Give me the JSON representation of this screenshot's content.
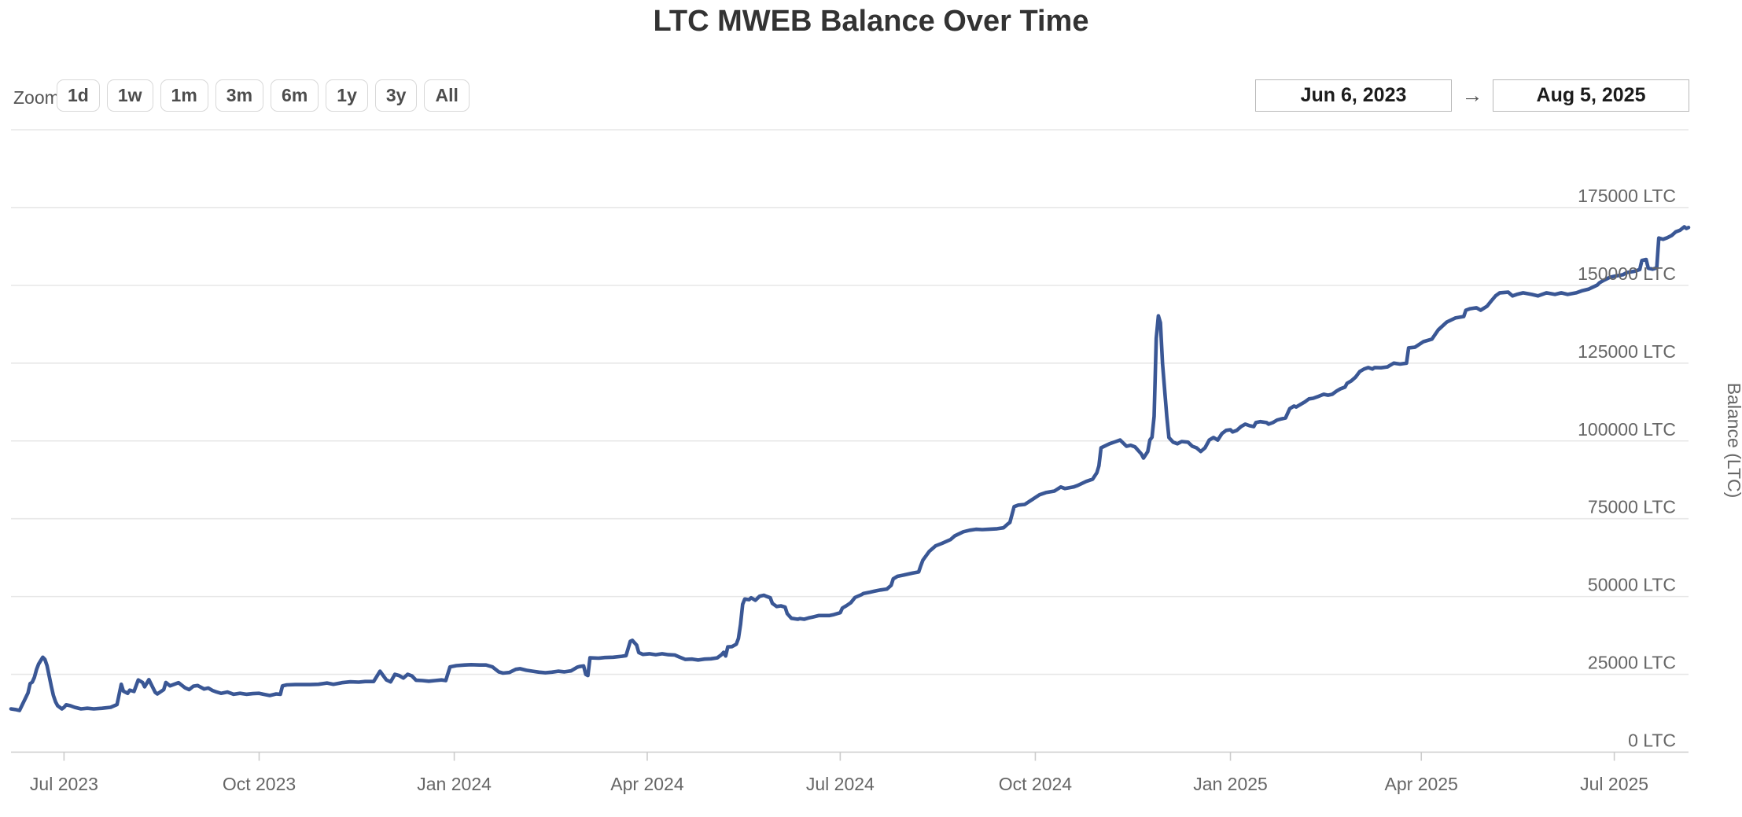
{
  "title": "LTC MWEB Balance Over Time",
  "controls": {
    "zoom_label": "Zoom",
    "zoom_buttons": [
      "1d",
      "1w",
      "1m",
      "3m",
      "6m",
      "1y",
      "3y",
      "All"
    ],
    "range_from": "Jun 6, 2023",
    "range_arrow": "→",
    "range_to": "Aug 5, 2025",
    "range_from_label": "range-start",
    "range_to_label": "range-end"
  },
  "chart_data": {
    "type": "line",
    "title": "LTC MWEB Balance Over Time",
    "ylabel": "Balance (LTC)",
    "line_color": "#3a5795",
    "grid": true,
    "background_color": "#ffffff",
    "gridline_color": "#e7e7e7",
    "axis_line_color": "#cccccc",
    "axis_label_color": "#666666",
    "x_start_date": "2023-06-06",
    "x_end_date": "2025-08-05",
    "total_days": 791,
    "ylim": [
      0,
      200000
    ],
    "y_tick_interval": 25000,
    "y_tick_suffix": " LTC",
    "y_ticks_labeled": [
      0,
      25000,
      50000,
      75000,
      100000,
      125000,
      150000,
      175000
    ],
    "x_ticks": [
      {
        "label": "Jul 2023",
        "day": 25
      },
      {
        "label": "Oct 2023",
        "day": 117
      },
      {
        "label": "Jan 2024",
        "day": 209
      },
      {
        "label": "Apr 2024",
        "day": 300
      },
      {
        "label": "Jul 2024",
        "day": 391
      },
      {
        "label": "Oct 2024",
        "day": 483
      },
      {
        "label": "Jan 2025",
        "day": 575
      },
      {
        "label": "Apr 2025",
        "day": 665
      },
      {
        "label": "Jul 2025",
        "day": 756
      }
    ],
    "points_format": [
      "days_since_2023-06-06",
      "balance_ltc"
    ],
    "points": [
      [
        0,
        13900
      ],
      [
        2,
        13700
      ],
      [
        4,
        13400
      ],
      [
        6,
        16200
      ],
      [
        8,
        19000
      ],
      [
        9,
        22000
      ],
      [
        10,
        22500
      ],
      [
        11,
        24000
      ],
      [
        12,
        26500
      ],
      [
        13,
        28300
      ],
      [
        15,
        30500
      ],
      [
        16,
        29800
      ],
      [
        17,
        27800
      ],
      [
        18,
        24500
      ],
      [
        19,
        21200
      ],
      [
        20,
        18200
      ],
      [
        21,
        16200
      ],
      [
        22,
        14900
      ],
      [
        24,
        13900
      ],
      [
        25,
        14400
      ],
      [
        26,
        15200
      ],
      [
        28,
        14900
      ],
      [
        30,
        14400
      ],
      [
        33,
        13900
      ],
      [
        36,
        14100
      ],
      [
        39,
        13900
      ],
      [
        43,
        14100
      ],
      [
        47,
        14400
      ],
      [
        50,
        15300
      ],
      [
        52,
        21800
      ],
      [
        53,
        19600
      ],
      [
        55,
        18900
      ],
      [
        56,
        19900
      ],
      [
        58,
        19500
      ],
      [
        60,
        23200
      ],
      [
        62,
        22400
      ],
      [
        63,
        21000
      ],
      [
        65,
        23300
      ],
      [
        68,
        19200
      ],
      [
        69,
        18700
      ],
      [
        72,
        20100
      ],
      [
        73,
        22400
      ],
      [
        75,
        21300
      ],
      [
        77,
        21800
      ],
      [
        79,
        22300
      ],
      [
        82,
        20700
      ],
      [
        84,
        20100
      ],
      [
        86,
        21200
      ],
      [
        88,
        21400
      ],
      [
        91,
        20300
      ],
      [
        93,
        20600
      ],
      [
        95,
        19800
      ],
      [
        97,
        19300
      ],
      [
        99,
        18900
      ],
      [
        102,
        19300
      ],
      [
        105,
        18600
      ],
      [
        108,
        18900
      ],
      [
        111,
        18600
      ],
      [
        114,
        18800
      ],
      [
        117,
        18900
      ],
      [
        119,
        18600
      ],
      [
        122,
        18200
      ],
      [
        125,
        18700
      ],
      [
        127,
        18600
      ],
      [
        128,
        21300
      ],
      [
        130,
        21600
      ],
      [
        134,
        21700
      ],
      [
        138,
        21700
      ],
      [
        141,
        21700
      ],
      [
        145,
        21800
      ],
      [
        149,
        22200
      ],
      [
        152,
        21800
      ],
      [
        156,
        22300
      ],
      [
        160,
        22600
      ],
      [
        164,
        22500
      ],
      [
        167,
        22700
      ],
      [
        171,
        22700
      ],
      [
        174,
        26000
      ],
      [
        177,
        23200
      ],
      [
        179,
        22600
      ],
      [
        181,
        25000
      ],
      [
        183,
        24600
      ],
      [
        185,
        23800
      ],
      [
        187,
        25000
      ],
      [
        189,
        24500
      ],
      [
        191,
        23100
      ],
      [
        194,
        23000
      ],
      [
        197,
        22800
      ],
      [
        200,
        23000
      ],
      [
        203,
        23200
      ],
      [
        205,
        23000
      ],
      [
        207,
        27400
      ],
      [
        210,
        27800
      ],
      [
        214,
        28000
      ],
      [
        217,
        28100
      ],
      [
        221,
        28000
      ],
      [
        224,
        28000
      ],
      [
        227,
        27400
      ],
      [
        230,
        25800
      ],
      [
        232,
        25400
      ],
      [
        235,
        25600
      ],
      [
        238,
        26600
      ],
      [
        240,
        26800
      ],
      [
        243,
        26300
      ],
      [
        246,
        26000
      ],
      [
        249,
        25700
      ],
      [
        252,
        25500
      ],
      [
        255,
        25700
      ],
      [
        258,
        26000
      ],
      [
        261,
        25800
      ],
      [
        264,
        26100
      ],
      [
        267,
        27300
      ],
      [
        268,
        27500
      ],
      [
        270,
        27700
      ],
      [
        271,
        25000
      ],
      [
        272,
        24600
      ],
      [
        273,
        30300
      ],
      [
        277,
        30200
      ],
      [
        280,
        30400
      ],
      [
        284,
        30500
      ],
      [
        288,
        30800
      ],
      [
        290,
        31000
      ],
      [
        292,
        35600
      ],
      [
        293,
        35900
      ],
      [
        295,
        34400
      ],
      [
        296,
        32000
      ],
      [
        298,
        31400
      ],
      [
        301,
        31600
      ],
      [
        304,
        31300
      ],
      [
        307,
        31600
      ],
      [
        310,
        31300
      ],
      [
        313,
        31200
      ],
      [
        315,
        30600
      ],
      [
        318,
        29800
      ],
      [
        321,
        29900
      ],
      [
        324,
        29600
      ],
      [
        327,
        29900
      ],
      [
        330,
        30000
      ],
      [
        333,
        30300
      ],
      [
        335,
        31300
      ],
      [
        336,
        32100
      ],
      [
        337,
        30900
      ],
      [
        338,
        33800
      ],
      [
        340,
        33900
      ],
      [
        342,
        34700
      ],
      [
        343,
        36500
      ],
      [
        344,
        41000
      ],
      [
        345,
        47500
      ],
      [
        346,
        49200
      ],
      [
        348,
        49000
      ],
      [
        349,
        49600
      ],
      [
        351,
        48800
      ],
      [
        353,
        50100
      ],
      [
        355,
        50400
      ],
      [
        356,
        50100
      ],
      [
        358,
        49600
      ],
      [
        359,
        47800
      ],
      [
        361,
        46800
      ],
      [
        363,
        47000
      ],
      [
        365,
        46600
      ],
      [
        366,
        44500
      ],
      [
        368,
        43000
      ],
      [
        371,
        42700
      ],
      [
        372,
        42900
      ],
      [
        374,
        42700
      ],
      [
        376,
        43100
      ],
      [
        378,
        43400
      ],
      [
        381,
        43900
      ],
      [
        384,
        43900
      ],
      [
        386,
        43900
      ],
      [
        388,
        44200
      ],
      [
        391,
        44800
      ],
      [
        392,
        46300
      ],
      [
        394,
        47100
      ],
      [
        396,
        48000
      ],
      [
        398,
        49700
      ],
      [
        401,
        50600
      ],
      [
        402,
        51000
      ],
      [
        405,
        51400
      ],
      [
        407,
        51700
      ],
      [
        410,
        52100
      ],
      [
        413,
        52400
      ],
      [
        415,
        53600
      ],
      [
        416,
        55700
      ],
      [
        418,
        56500
      ],
      [
        421,
        56900
      ],
      [
        425,
        57500
      ],
      [
        428,
        57900
      ],
      [
        429,
        59900
      ],
      [
        430,
        61700
      ],
      [
        433,
        64500
      ],
      [
        436,
        66300
      ],
      [
        439,
        67100
      ],
      [
        443,
        68300
      ],
      [
        445,
        69500
      ],
      [
        449,
        70800
      ],
      [
        452,
        71300
      ],
      [
        455,
        71600
      ],
      [
        458,
        71500
      ],
      [
        461,
        71600
      ],
      [
        465,
        71800
      ],
      [
        468,
        72100
      ],
      [
        470,
        73300
      ],
      [
        471,
        73800
      ],
      [
        473,
        78900
      ],
      [
        475,
        79400
      ],
      [
        478,
        79600
      ],
      [
        482,
        81400
      ],
      [
        485,
        82700
      ],
      [
        488,
        83400
      ],
      [
        492,
        83900
      ],
      [
        495,
        85200
      ],
      [
        497,
        84700
      ],
      [
        501,
        85200
      ],
      [
        503,
        85700
      ],
      [
        507,
        87000
      ],
      [
        510,
        87700
      ],
      [
        512,
        89800
      ],
      [
        513,
        92000
      ],
      [
        514,
        97800
      ],
      [
        518,
        99100
      ],
      [
        521,
        99800
      ],
      [
        523,
        100300
      ],
      [
        526,
        98300
      ],
      [
        528,
        98600
      ],
      [
        530,
        98100
      ],
      [
        533,
        95800
      ],
      [
        534,
        94500
      ],
      [
        536,
        96600
      ],
      [
        537,
        100300
      ],
      [
        538,
        101200
      ],
      [
        539,
        107900
      ],
      [
        540,
        133000
      ],
      [
        541,
        140200
      ],
      [
        542,
        138000
      ],
      [
        543,
        124800
      ],
      [
        545,
        107900
      ],
      [
        546,
        101100
      ],
      [
        548,
        99600
      ],
      [
        550,
        99100
      ],
      [
        552,
        99800
      ],
      [
        555,
        99600
      ],
      [
        557,
        98300
      ],
      [
        559,
        97800
      ],
      [
        561,
        96600
      ],
      [
        563,
        97800
      ],
      [
        565,
        100300
      ],
      [
        567,
        101100
      ],
      [
        569,
        100300
      ],
      [
        571,
        102400
      ],
      [
        573,
        103400
      ],
      [
        575,
        103600
      ],
      [
        576,
        102900
      ],
      [
        578,
        103400
      ],
      [
        580,
        104600
      ],
      [
        582,
        105400
      ],
      [
        584,
        104900
      ],
      [
        586,
        104600
      ],
      [
        587,
        105900
      ],
      [
        589,
        106200
      ],
      [
        592,
        105900
      ],
      [
        593,
        105400
      ],
      [
        595,
        105900
      ],
      [
        597,
        106700
      ],
      [
        599,
        107100
      ],
      [
        601,
        107400
      ],
      [
        603,
        110400
      ],
      [
        605,
        111200
      ],
      [
        606,
        110900
      ],
      [
        608,
        111700
      ],
      [
        610,
        112500
      ],
      [
        612,
        113500
      ],
      [
        614,
        113700
      ],
      [
        616,
        114200
      ],
      [
        619,
        115000
      ],
      [
        621,
        114700
      ],
      [
        623,
        115000
      ],
      [
        625,
        116000
      ],
      [
        627,
        116800
      ],
      [
        629,
        117300
      ],
      [
        630,
        118500
      ],
      [
        632,
        119300
      ],
      [
        634,
        120500
      ],
      [
        636,
        122300
      ],
      [
        638,
        123100
      ],
      [
        640,
        123600
      ],
      [
        642,
        123100
      ],
      [
        643,
        123600
      ],
      [
        646,
        123500
      ],
      [
        649,
        123800
      ],
      [
        652,
        125000
      ],
      [
        655,
        124700
      ],
      [
        658,
        125000
      ],
      [
        659,
        129900
      ],
      [
        662,
        130100
      ],
      [
        666,
        131900
      ],
      [
        670,
        132700
      ],
      [
        673,
        135700
      ],
      [
        677,
        138200
      ],
      [
        681,
        139500
      ],
      [
        685,
        140000
      ],
      [
        686,
        142000
      ],
      [
        688,
        142500
      ],
      [
        691,
        142800
      ],
      [
        693,
        142000
      ],
      [
        696,
        143300
      ],
      [
        698,
        145000
      ],
      [
        700,
        146600
      ],
      [
        702,
        147600
      ],
      [
        706,
        147800
      ],
      [
        708,
        146600
      ],
      [
        710,
        147100
      ],
      [
        713,
        147600
      ],
      [
        717,
        147100
      ],
      [
        720,
        146600
      ],
      [
        724,
        147600
      ],
      [
        728,
        147100
      ],
      [
        731,
        147600
      ],
      [
        734,
        147100
      ],
      [
        738,
        147600
      ],
      [
        741,
        148300
      ],
      [
        744,
        148800
      ],
      [
        748,
        150100
      ],
      [
        749,
        150800
      ],
      [
        751,
        151600
      ],
      [
        754,
        152600
      ],
      [
        756,
        152900
      ],
      [
        760,
        153400
      ],
      [
        762,
        154100
      ],
      [
        766,
        154600
      ],
      [
        768,
        155100
      ],
      [
        769,
        158000
      ],
      [
        771,
        158300
      ],
      [
        772,
        155500
      ],
      [
        774,
        155200
      ],
      [
        776,
        155600
      ],
      [
        777,
        165200
      ],
      [
        779,
        164800
      ],
      [
        781,
        165300
      ],
      [
        783,
        166000
      ],
      [
        785,
        167200
      ],
      [
        787,
        167700
      ],
      [
        789,
        168800
      ],
      [
        790,
        168300
      ],
      [
        791,
        168600
      ]
    ]
  }
}
